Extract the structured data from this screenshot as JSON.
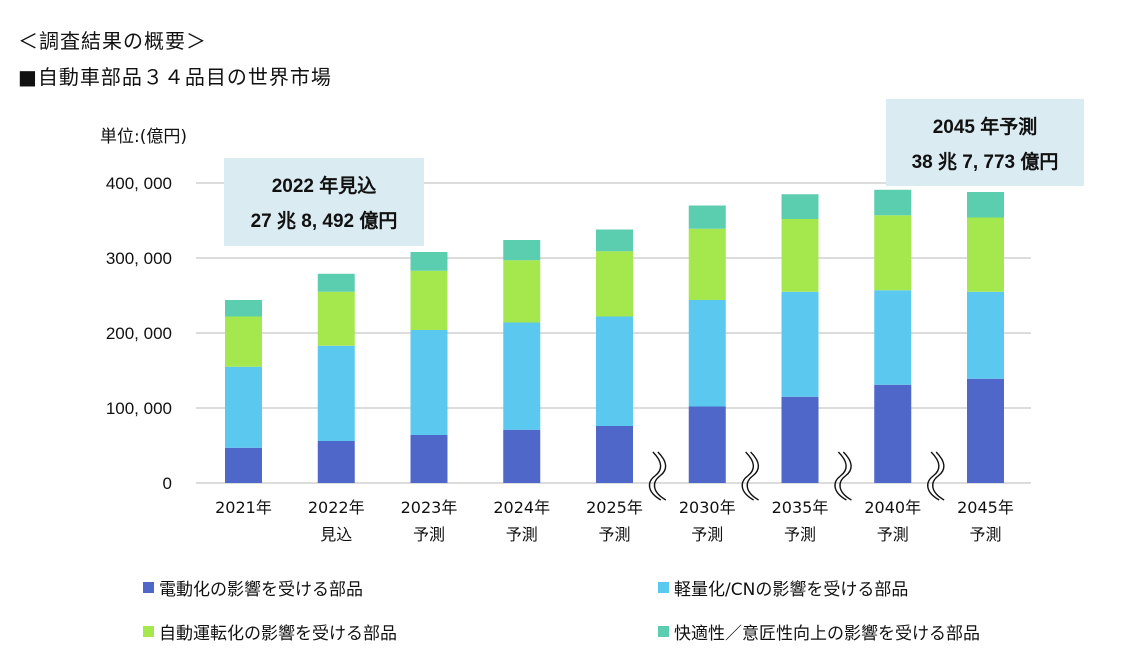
{
  "page": {
    "section_title": "＜調査結果の概要＞",
    "chart_heading": "■自動車部品３４品目の世界市場",
    "unit_label": "単位:(億円)"
  },
  "callouts": [
    {
      "line1": "2022 年見込",
      "line2": "27 兆 8, 492 億円"
    },
    {
      "line1": "2045 年予測",
      "line2": "38 兆 7, 773 億円"
    }
  ],
  "colors": {
    "electrification": "#4f67c9",
    "lightweight_cn": "#5bc8f0",
    "autonomous": "#a5e84e",
    "comfort_design": "#5cceb0",
    "gridline": "#d0d0d0",
    "callout_bg": "#daebf2"
  },
  "chart_data": {
    "type": "bar",
    "stacked": true,
    "title": "自動車部品３４品目の世界市場",
    "ylabel": "単位:(億円)",
    "xlabel": "",
    "ylim": [
      0,
      400000
    ],
    "yticks": [
      0,
      100000,
      200000,
      300000,
      400000
    ],
    "ytick_labels": [
      "0",
      "100, 000",
      "200, 000",
      "300, 000",
      "400, 000"
    ],
    "grid": true,
    "legend_position": "bottom",
    "categories": [
      "2021年",
      "2022年見込",
      "2023年予測",
      "2024年予測",
      "2025年予測",
      "2030年予測",
      "2035年予測",
      "2040年予測",
      "2045年予測"
    ],
    "category_lines": [
      [
        "2021年",
        ""
      ],
      [
        "2022年",
        "見込"
      ],
      [
        "2023年",
        "予測"
      ],
      [
        "2024年",
        "予測"
      ],
      [
        "2025年",
        "予測"
      ],
      [
        "2030年",
        "予測"
      ],
      [
        "2035年",
        "予測"
      ],
      [
        "2040年",
        "予測"
      ],
      [
        "2045年",
        "予測"
      ]
    ],
    "axis_breaks_after": [
      "2025年予測",
      "2030年予測",
      "2035年予測",
      "2040年予測"
    ],
    "series": [
      {
        "name": "電動化の影響を受ける部品",
        "color_key": "electrification",
        "values": [
          47000,
          56000,
          64000,
          71000,
          76000,
          102000,
          115000,
          131000,
          139000
        ]
      },
      {
        "name": "軽量化/CNの影響を受ける部品",
        "color_key": "lightweight_cn",
        "values": [
          108000,
          127000,
          140000,
          143000,
          146000,
          142000,
          140000,
          126000,
          116000
        ]
      },
      {
        "name": "自動運転化の影響を受ける部品",
        "color_key": "autonomous",
        "values": [
          67000,
          72000,
          79000,
          83000,
          87000,
          95000,
          97000,
          100000,
          99000
        ]
      },
      {
        "name": "快適性／意匠性向上の影響を受ける部品",
        "color_key": "comfort_design",
        "values": [
          22000,
          24000,
          25000,
          27000,
          29000,
          31000,
          33000,
          34000,
          34000
        ]
      }
    ],
    "annotations": [
      {
        "category": "2022年見込",
        "text": "2022 年見込 27 兆 8, 492 億円",
        "total": 278492
      },
      {
        "category": "2045年予測",
        "text": "2045 年予測 38 兆 7, 773 億円",
        "total": 387773
      }
    ]
  },
  "legend": [
    {
      "label": "電動化の影響を受ける部品",
      "color_key": "electrification"
    },
    {
      "label": "軽量化/CNの影響を受ける部品",
      "color_key": "lightweight_cn"
    },
    {
      "label": "自動運転化の影響を受ける部品",
      "color_key": "autonomous"
    },
    {
      "label": "快適性／意匠性向上の影響を受ける部品",
      "color_key": "comfort_design"
    }
  ]
}
